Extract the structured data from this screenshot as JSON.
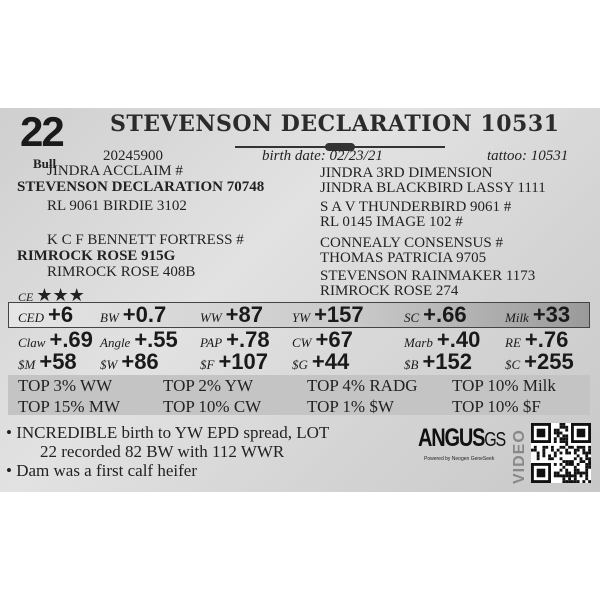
{
  "lot": {
    "number": "22",
    "type": "Bull",
    "name": "STEVENSON DECLARATION 10531",
    "registration": "20245900",
    "birth_date": "birth date:  02/23/21",
    "tattoo": "tattoo: 10531"
  },
  "pedigree": {
    "sire_sire": "JINDRA ACCLAIM #",
    "sire": "STEVENSON DECLARATION 70748",
    "sire_dam": "RL 9061 BIRDIE 3102",
    "dam_sire": "K C F BENNETT FORTRESS #",
    "dam": "RIMROCK ROSE 915G",
    "dam_dam": "RIMROCK ROSE 408B",
    "right": [
      "JINDRA 3RD DIMENSION",
      "JINDRA BLACKBIRD LASSY 1111",
      "S A V THUNDERBIRD 9061 #",
      "RL 0145 IMAGE 102 #",
      "CONNEALY CONSENSUS #",
      "THOMAS PATRICIA 9705",
      "STEVENSON RAINMAKER 1173",
      "RIMROCK ROSE 274"
    ]
  },
  "ce": {
    "label": "CE",
    "stars": "★★★",
    "rating": 3
  },
  "epd_rows": [
    [
      {
        "l": "CED",
        "v": "+6"
      },
      {
        "l": "BW",
        "v": "+0.7"
      },
      {
        "l": "WW",
        "v": "+87"
      },
      {
        "l": "YW",
        "v": "+157"
      },
      {
        "l": "SC",
        "v": "+.66"
      },
      {
        "l": "Milk",
        "v": "+33"
      }
    ],
    [
      {
        "l": "Claw",
        "v": "+.69"
      },
      {
        "l": "Angle",
        "v": "+.55"
      },
      {
        "l": "PAP",
        "v": "+.78"
      },
      {
        "l": "CW",
        "v": "+67"
      },
      {
        "l": "Marb",
        "v": "+.40"
      },
      {
        "l": "RE",
        "v": "+.76"
      }
    ],
    [
      {
        "l": "$M",
        "v": "+58"
      },
      {
        "l": "$W",
        "v": "+86"
      },
      {
        "l": "$F",
        "v": "+107"
      },
      {
        "l": "$G",
        "v": "+44"
      },
      {
        "l": "$B",
        "v": "+152"
      },
      {
        "l": "$C",
        "v": "+255"
      }
    ]
  ],
  "top": [
    [
      "TOP 3% WW",
      "TOP 2% YW",
      "TOP 4% RADG",
      "TOP 10% Milk"
    ],
    [
      "TOP 15% MW",
      "TOP 10% CW",
      "TOP 1% $W",
      "TOP 10% $F"
    ]
  ],
  "notes": [
    "• INCREDIBLE birth to YW EPD spread, LOT",
    "22 recorded 82 BW with 112 WWR",
    "• Dam was a first calf heifer"
  ],
  "logo": {
    "text": "ANGUS",
    "suffix": "GS",
    "tagline": "Powered by Neogen GeneSeek"
  },
  "video": {
    "label": "VIDEO",
    "icon": "qr-code-icon"
  }
}
